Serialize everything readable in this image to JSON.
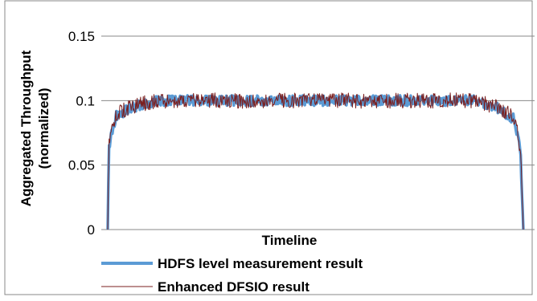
{
  "chart_data": {
    "type": "line",
    "xlabel": "Timeline",
    "ylabel": "Aggregated Throughput (normalized)",
    "ylabel_lines": [
      "Aggregated Throughput",
      "(normalized)"
    ],
    "ylim": [
      0,
      0.15
    ],
    "yticks": [
      0,
      0.05,
      0.1,
      0.15
    ],
    "ytick_labels": [
      "0",
      "0.05",
      "0.1",
      "0.15"
    ],
    "x_tick_labels": false,
    "grid": "horizontal",
    "legend_position": "bottom",
    "series": [
      {
        "name": "HDFS level measurement result",
        "color": "#5b9bd5",
        "profile": [
          [
            0,
            0
          ],
          [
            0.003,
            0.065
          ],
          [
            0.02,
            0.088
          ],
          [
            0.06,
            0.095
          ],
          [
            0.12,
            0.1
          ],
          [
            0.88,
            0.1
          ],
          [
            0.94,
            0.094
          ],
          [
            0.98,
            0.085
          ],
          [
            0.993,
            0.06
          ],
          [
            1,
            0
          ]
        ],
        "noise_amplitude": 0.004
      },
      {
        "name": "Enhanced DFSIO result",
        "color": "#7b1f1f",
        "profile": [
          [
            0,
            0
          ],
          [
            0.003,
            0.07
          ],
          [
            0.02,
            0.089
          ],
          [
            0.06,
            0.096
          ],
          [
            0.12,
            0.1
          ],
          [
            0.88,
            0.1
          ],
          [
            0.94,
            0.095
          ],
          [
            0.98,
            0.086
          ],
          [
            0.993,
            0.062
          ],
          [
            1,
            0
          ]
        ],
        "noise_amplitude": 0.006
      }
    ]
  }
}
